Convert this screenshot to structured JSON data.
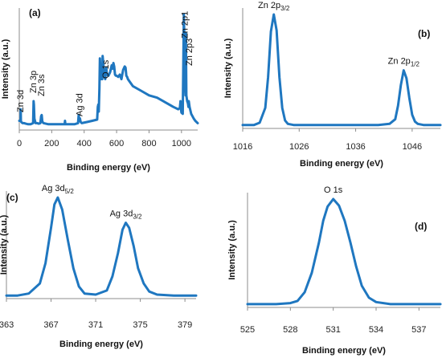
{
  "chart_data": [
    {
      "type": "line",
      "panel_label": "(a)",
      "xlabel": "Binding energy (eV)",
      "ylabel": "Intensity (a.u.)",
      "xlim": [
        0,
        1100
      ],
      "ylim": [
        0,
        100
      ],
      "xticks": [
        0,
        200,
        400,
        600,
        800,
        1000
      ],
      "tick_labels": [
        "0",
        "200",
        "400",
        "600",
        "800",
        "1000"
      ],
      "series": [
        {
          "x": [
            0,
            8,
            9,
            10,
            12,
            20,
            30,
            40,
            55,
            70,
            85,
            88,
            90,
            93,
            100,
            110,
            120,
            130,
            135,
            138,
            142,
            150,
            180,
            230,
            280,
            282,
            284,
            290,
            300,
            340,
            362,
            366,
            370,
            374,
            378,
            385,
            420,
            450,
            480,
            484,
            487,
            490,
            494,
            497,
            500,
            504,
            508,
            512,
            514,
            518,
            522,
            526,
            530,
            533,
            536,
            540,
            550,
            560,
            570,
            575,
            580,
            585,
            590,
            595,
            600,
            610,
            620,
            630,
            640,
            650,
            655,
            660,
            665,
            670,
            680,
            700,
            750,
            800,
            850,
            900,
            950,
            980,
            990,
            994,
            997,
            1000,
            1008,
            1015,
            1018,
            1022,
            1025,
            1027,
            1030,
            1035,
            1040,
            1043,
            1045,
            1047,
            1050,
            1060,
            1075,
            1085,
            1100
          ],
          "y": [
            8,
            8,
            18,
            8,
            7,
            6,
            6,
            5.5,
            5,
            5,
            6,
            25,
            22,
            10,
            6,
            6,
            5.5,
            6,
            12,
            13,
            7,
            6,
            5,
            5,
            5,
            8,
            5,
            5,
            5,
            5,
            6,
            13,
            9,
            10,
            7,
            6,
            7,
            8,
            9,
            20,
            22,
            16,
            36,
            62,
            52,
            44,
            47,
            44,
            64,
            58,
            48,
            46,
            44,
            52,
            54,
            48,
            47,
            50,
            56,
            53,
            58,
            55,
            48,
            47,
            47,
            46,
            48,
            44,
            52,
            55,
            54,
            47,
            46,
            44,
            42,
            38,
            34,
            30,
            28,
            24,
            20,
            18,
            19,
            25,
            18,
            15,
            14,
            100,
            75,
            40,
            30,
            84,
            30,
            25,
            23,
            20,
            25,
            23,
            20,
            14,
            10,
            8,
            6
          ]
        }
      ],
      "annotations": [
        {
          "text": "Zn 3d",
          "x": 10
        },
        {
          "text": "Zn 3p",
          "x": 90
        },
        {
          "text": "Zn 3s",
          "x": 138
        },
        {
          "text": "Ag 3d",
          "x": 370
        },
        {
          "text": "O 1s",
          "x": 530
        },
        {
          "text": "Zn 2p1",
          "x": 1018
        },
        {
          "text": "Zn 2p3",
          "x": 1045
        }
      ]
    },
    {
      "type": "line",
      "panel_label": "(b)",
      "xlabel": "Binding energy (eV)",
      "ylabel": "Intensity (a.u.)",
      "xlim": [
        1016,
        1051
      ],
      "ylim": [
        0,
        100
      ],
      "xticks": [
        1016,
        1026,
        1036,
        1046
      ],
      "tick_labels": [
        "1016",
        "1026",
        "1036",
        "1046"
      ],
      "series": [
        {
          "x": [
            1016,
            1017,
            1018,
            1019,
            1020,
            1020.5,
            1021,
            1021.5,
            1022,
            1022.5,
            1023,
            1023.5,
            1024,
            1025,
            1026,
            1030,
            1035,
            1040,
            1042,
            1043,
            1043.5,
            1044,
            1044.5,
            1045,
            1045.5,
            1046,
            1046.5,
            1047,
            1048,
            1050,
            1051
          ],
          "y": [
            3,
            3,
            3,
            5,
            18,
            45,
            85,
            100,
            86,
            45,
            18,
            7,
            4,
            3,
            3,
            3,
            3,
            3,
            4,
            8,
            20,
            38,
            51,
            44,
            27,
            12,
            6,
            4,
            3,
            3,
            3
          ]
        }
      ],
      "peak_labels": [
        {
          "text": "Zn 2p",
          "sub": "3/2",
          "x": 1021.5
        },
        {
          "text": "Zn 2p",
          "sub": "1/2",
          "x": 1044.5
        }
      ]
    },
    {
      "type": "line",
      "panel_label": "(c)",
      "xlabel": "Binding energy (eV)",
      "ylabel": "Intensity (a.u.)",
      "xlim": [
        363,
        380
      ],
      "ylim": [
        0,
        100
      ],
      "xticks": [
        363,
        367,
        371,
        375,
        379
      ],
      "tick_labels": [
        "363",
        "367",
        "371",
        "375",
        "379"
      ],
      "series": [
        {
          "x": [
            363,
            364,
            365,
            366,
            366.5,
            367,
            367.3,
            367.6,
            368,
            368.5,
            369,
            369.5,
            370,
            371,
            372,
            372.5,
            373,
            373.4,
            373.7,
            374,
            374.4,
            374.8,
            375.3,
            375.8,
            376.5,
            378,
            380
          ],
          "y": [
            3,
            3,
            5,
            15,
            35,
            70,
            93,
            100,
            88,
            58,
            30,
            12,
            5,
            4,
            8,
            22,
            45,
            68,
            75,
            70,
            52,
            30,
            15,
            7,
            4,
            3,
            3
          ]
        }
      ],
      "peak_labels": [
        {
          "text": "Ag 3d",
          "sub": "5/2",
          "x": 367.6
        },
        {
          "text": "Ag 3d",
          "sub": "3/2",
          "x": 373.7
        }
      ]
    },
    {
      "type": "line",
      "panel_label": "(d)",
      "xlabel": "Binding energy (eV)",
      "ylabel": "Intensity (a.u.)",
      "xlim": [
        525,
        538.5
      ],
      "ylim": [
        0,
        100
      ],
      "xticks": [
        525,
        528,
        531,
        534,
        537
      ],
      "tick_labels": [
        "525",
        "528",
        "531",
        "534",
        "537"
      ],
      "series": [
        {
          "x": [
            525,
            527,
            528,
            528.5,
            529,
            529.5,
            530,
            530.3,
            530.6,
            531,
            531.4,
            531.8,
            532.2,
            532.6,
            533,
            533.5,
            534,
            535,
            537,
            538.5
          ],
          "y": [
            3,
            3,
            4,
            6,
            14,
            32,
            60,
            80,
            93,
            100,
            94,
            80,
            60,
            38,
            20,
            9,
            5,
            3,
            3,
            3
          ]
        }
      ],
      "peak_labels": [
        {
          "text": "O 1s",
          "sub": "",
          "x": 531
        }
      ]
    }
  ],
  "colors": {
    "line": "#1f77c0",
    "axis": "#8c8c8c"
  }
}
